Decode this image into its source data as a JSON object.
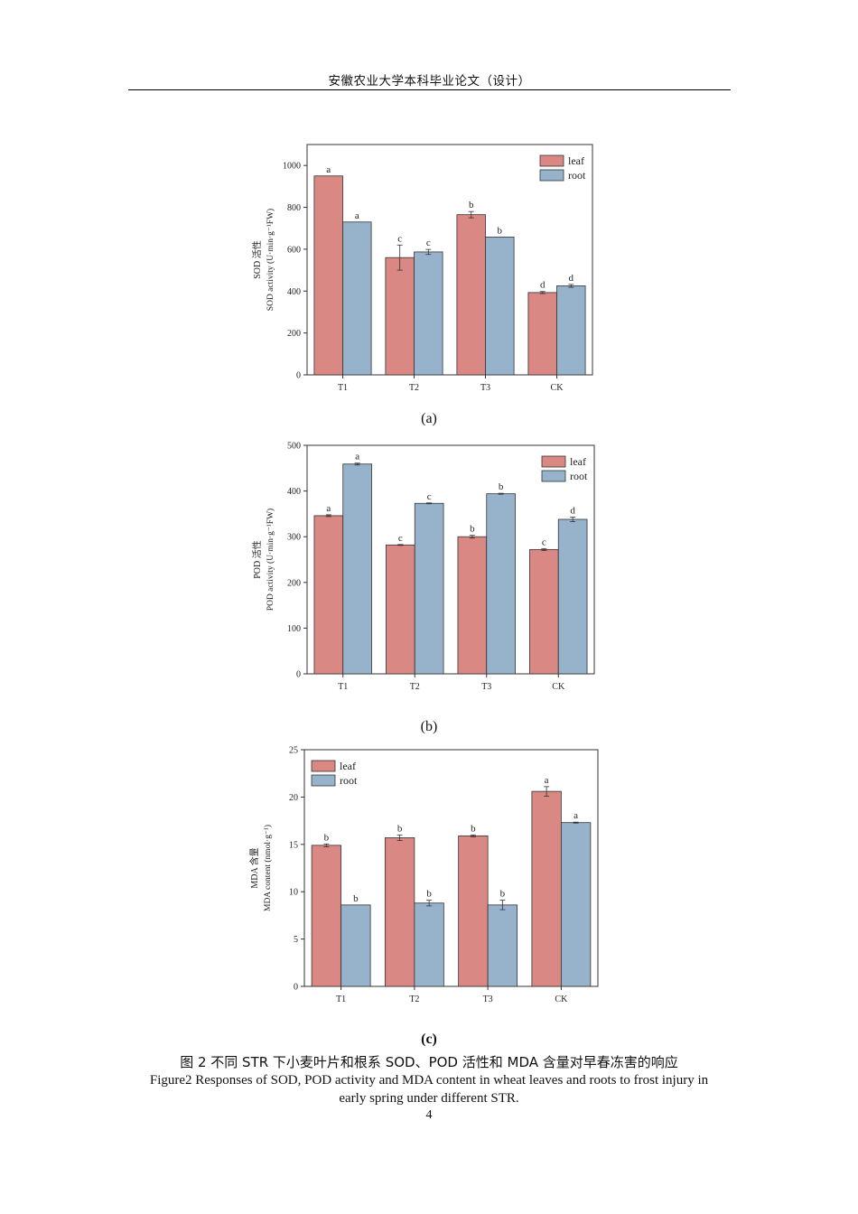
{
  "header": {
    "title": "安徽农业大学本科毕业论文（设计）"
  },
  "colors": {
    "leaf": "#d98884",
    "root": "#97b3cc",
    "edge": "#333333"
  },
  "chart_data": [
    {
      "type": "bar",
      "id": "a",
      "panel_label": "(a)",
      "categories": [
        "T1",
        "T2",
        "T3",
        "CK"
      ],
      "ylabel_cn": "SOD 活性",
      "ylabel_en": "SOD activity (U·min·g⁻¹FW)",
      "ylim": [
        0,
        1100
      ],
      "yticks": [
        0,
        200,
        400,
        600,
        800,
        1000
      ],
      "legend_position": "top-right",
      "series": [
        {
          "name": "leaf",
          "values": [
            950,
            560,
            765,
            393
          ],
          "errors": [
            0,
            60,
            15,
            5
          ],
          "letters": [
            "a",
            "c",
            "b",
            "d"
          ]
        },
        {
          "name": "root",
          "values": [
            730,
            587,
            658,
            425
          ],
          "errors": [
            0,
            12,
            0,
            7
          ],
          "letters": [
            "a",
            "c",
            "b",
            "d"
          ]
        }
      ]
    },
    {
      "type": "bar",
      "id": "b",
      "panel_label": "(b)",
      "categories": [
        "T1",
        "T2",
        "T3",
        "CK"
      ],
      "ylabel_cn": "POD 活性",
      "ylabel_en": "POD activity (U·min·g⁻¹FW)",
      "ylim": [
        0,
        500
      ],
      "yticks": [
        0,
        100,
        200,
        300,
        400,
        500
      ],
      "legend_position": "top-right",
      "series": [
        {
          "name": "leaf",
          "values": [
            346,
            282,
            300,
            272
          ],
          "errors": [
            2,
            1,
            3,
            2
          ],
          "letters": [
            "a",
            "c",
            "b",
            "c"
          ]
        },
        {
          "name": "root",
          "values": [
            459,
            373,
            394,
            338
          ],
          "errors": [
            2,
            1,
            1,
            5
          ],
          "letters": [
            "a",
            "c",
            "b",
            "d"
          ]
        }
      ]
    },
    {
      "type": "bar",
      "id": "c",
      "panel_label": "(c)",
      "categories": [
        "T1",
        "T2",
        "T3",
        "CK"
      ],
      "ylabel_cn": "MDA 含量",
      "ylabel_en": "MDA content (nmol·g⁻¹)",
      "ylim": [
        0,
        25
      ],
      "yticks": [
        0,
        5,
        10,
        15,
        20,
        25
      ],
      "legend_position": "top-left",
      "series": [
        {
          "name": "leaf",
          "values": [
            14.9,
            15.7,
            15.9,
            20.6
          ],
          "errors": [
            0.15,
            0.3,
            0.1,
            0.5
          ],
          "letters": [
            "b",
            "b",
            "b",
            "a"
          ]
        },
        {
          "name": "root",
          "values": [
            8.6,
            8.8,
            8.6,
            17.3
          ],
          "errors": [
            0,
            0.3,
            0.5,
            0.05
          ],
          "letters": [
            "b",
            "b",
            "b",
            "a"
          ]
        }
      ]
    }
  ],
  "caption": {
    "cn": "图 2  不同 STR 下小麦叶片和根系 SOD、POD 活性和 MDA 含量对早春冻害的响应",
    "en": "Figure2 Responses of SOD, POD activity and MDA content in wheat leaves and roots to frost injury in early spring under different STR."
  },
  "page_number": "4"
}
